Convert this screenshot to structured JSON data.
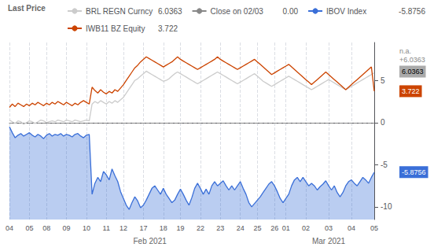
{
  "chart_data": {
    "type": "line",
    "legend": "upper left",
    "legend_title": "Last Price",
    "grid": true,
    "ylim": [
      -11.5,
      9.5
    ],
    "yticks": [
      -10,
      -5,
      0,
      5
    ],
    "month_labels": [
      "Feb 2021",
      "Mar 2021"
    ],
    "categories": [
      "04",
      null,
      null,
      null,
      null,
      null,
      null,
      "05",
      null,
      null,
      null,
      null,
      null,
      "08",
      null,
      null,
      null,
      null,
      null,
      null,
      "09",
      null,
      null,
      null,
      null,
      null,
      null,
      "10",
      null,
      null,
      null,
      null,
      null,
      null,
      "11",
      null,
      null,
      null,
      null,
      null,
      "12",
      null,
      null,
      null,
      null,
      null,
      null,
      "17",
      null,
      null,
      null,
      null,
      null,
      null,
      "18",
      null,
      null,
      null,
      null,
      null,
      "19",
      null,
      null,
      null,
      null,
      null,
      null,
      "22",
      null,
      null,
      null,
      null,
      null,
      null,
      "23",
      null,
      null,
      null,
      null,
      null,
      null,
      "24",
      null,
      null,
      null,
      null,
      null,
      "25",
      null,
      null,
      null,
      null,
      null,
      "26",
      null,
      null,
      null,
      "01",
      null,
      null,
      null,
      null,
      null,
      null,
      "02",
      null,
      null,
      null,
      null,
      null,
      null,
      null,
      "03",
      null,
      null,
      null,
      null,
      null,
      null,
      null,
      "04",
      null,
      null,
      null,
      null,
      null,
      null,
      null,
      "05"
    ],
    "series": [
      {
        "name": "BRL REGN Curncy",
        "last": "6.0363",
        "color": "#cccccc",
        "type": "line",
        "line_style": "solid",
        "values": [
          0.3,
          0.1,
          -0.1,
          0.2,
          0.1,
          -0.2,
          0.0,
          0.2,
          0.1,
          -0.1,
          0.1,
          0.3,
          0.2,
          0.0,
          0.1,
          0.2,
          0.1,
          0.3,
          0.2,
          0.1,
          0.3,
          0.2,
          0.1,
          0.3,
          0.2,
          0.1,
          0.2,
          0.3,
          0.2,
          2.2,
          2.5,
          2.3,
          2.6,
          2.4,
          2.2,
          2.5,
          2.3,
          2.6,
          2.4,
          2.7,
          3.0,
          3.5,
          4.0,
          4.5,
          5.0,
          5.2,
          5.5,
          5.8,
          6.1,
          5.9,
          5.7,
          5.5,
          5.3,
          5.1,
          4.9,
          5.0,
          5.2,
          5.5,
          5.8,
          6.0,
          5.8,
          5.6,
          5.4,
          5.2,
          5.0,
          4.8,
          4.6,
          4.8,
          5.0,
          5.2,
          5.4,
          5.6,
          5.8,
          6.0,
          5.8,
          5.6,
          5.4,
          5.2,
          5.0,
          4.8,
          4.6,
          4.8,
          5.0,
          5.2,
          5.4,
          5.6,
          5.8,
          5.5,
          5.2,
          4.9,
          4.7,
          4.5,
          4.3,
          4.5,
          4.7,
          4.9,
          5.1,
          5.3,
          5.5,
          5.3,
          5.1,
          4.9,
          4.7,
          4.5,
          4.3,
          4.1,
          3.9,
          4.1,
          4.3,
          4.5,
          4.7,
          4.9,
          5.1,
          4.9,
          4.7,
          4.5,
          4.3,
          4.1,
          3.9,
          4.1,
          4.3,
          4.5,
          4.7,
          4.9,
          5.1,
          5.3,
          5.5,
          5.7,
          5.9
        ]
      },
      {
        "name": "Close on 02/03",
        "last": "0.00",
        "color": "#888888",
        "type": "hline",
        "line_style": "dashed",
        "y": 0
      },
      {
        "name": "IBOV Index",
        "last": "-5.8756",
        "color": "#3a6fd8",
        "type": "area",
        "line_style": "solid",
        "values": [
          -0.5,
          -1.2,
          -1.8,
          -1.5,
          -1.3,
          -1.6,
          -1.4,
          -1.2,
          -1.5,
          -1.7,
          -1.4,
          -1.6,
          -1.9,
          -1.5,
          -1.3,
          -1.6,
          -1.4,
          -1.5,
          -1.3,
          -1.6,
          -1.4,
          -1.5,
          -1.7,
          -1.4,
          -1.3,
          -1.6,
          -1.8,
          -1.5,
          -1.4,
          -8.5,
          -7.2,
          -6.5,
          -7.0,
          -5.8,
          -6.2,
          -6.8,
          -5.5,
          -6.3,
          -7.0,
          -8.2,
          -9.0,
          -9.8,
          -10.3,
          -9.5,
          -8.8,
          -9.3,
          -10.1,
          -9.8,
          -9.2,
          -8.5,
          -7.8,
          -7.5,
          -8.0,
          -8.5,
          -7.8,
          -8.5,
          -9.0,
          -9.5,
          -9.2,
          -8.5,
          -7.9,
          -8.5,
          -9.2,
          -9.8,
          -8.9,
          -7.8,
          -7.2,
          -7.8,
          -8.5,
          -7.9,
          -8.5,
          -7.5,
          -7.0,
          -7.5,
          -7.2,
          -6.9,
          -7.5,
          -8.0,
          -7.5,
          -8.0,
          -7.5,
          -7.0,
          -7.8,
          -8.5,
          -9.5,
          -10.0,
          -9.6,
          -9.2,
          -8.8,
          -8.3,
          -7.8,
          -7.3,
          -7.0,
          -7.5,
          -8.2,
          -9.0,
          -9.5,
          -9.0,
          -8.5,
          -7.5,
          -6.8,
          -6.5,
          -7.0,
          -6.5,
          -7.0,
          -7.5,
          -7.2,
          -7.5,
          -8.0,
          -7.6,
          -7.3,
          -6.9,
          -7.5,
          -8.0,
          -7.5,
          -8.3,
          -8.8,
          -8.3,
          -7.5,
          -7.0,
          -6.8,
          -7.2,
          -7.5,
          -7.0,
          -6.5,
          -6.8,
          -7.2,
          -6.5,
          -5.9
        ]
      },
      {
        "name": "IWB11 BZ Equity",
        "last": "3.722",
        "color": "#cc4400",
        "type": "line",
        "line_style": "solid",
        "values": [
          1.8,
          2.2,
          1.9,
          2.3,
          2.1,
          1.9,
          2.2,
          2.0,
          2.3,
          2.1,
          2.4,
          2.2,
          2.0,
          2.3,
          2.1,
          2.4,
          2.2,
          2.5,
          2.3,
          2.1,
          2.4,
          2.2,
          2.0,
          2.3,
          2.1,
          2.4,
          2.6,
          2.4,
          2.2,
          4.2,
          3.8,
          3.5,
          3.9,
          3.6,
          3.4,
          3.7,
          3.5,
          3.9,
          3.7,
          4.1,
          4.5,
          5.0,
          5.5,
          6.0,
          6.5,
          6.8,
          7.2,
          7.5,
          7.8,
          7.6,
          7.4,
          7.2,
          7.0,
          6.8,
          6.6,
          6.8,
          7.0,
          7.2,
          7.5,
          7.8,
          7.5,
          7.3,
          7.1,
          6.9,
          6.7,
          6.5,
          6.3,
          6.5,
          6.7,
          6.9,
          7.1,
          7.3,
          7.5,
          7.8,
          7.5,
          7.3,
          7.1,
          6.9,
          6.7,
          6.5,
          6.3,
          6.5,
          6.7,
          6.9,
          7.1,
          7.3,
          7.5,
          7.2,
          6.9,
          6.6,
          6.3,
          6.0,
          5.7,
          5.9,
          6.1,
          6.3,
          6.5,
          6.7,
          6.9,
          6.6,
          6.3,
          6.0,
          5.7,
          5.4,
          5.1,
          4.8,
          4.5,
          4.8,
          5.1,
          5.4,
          5.7,
          6.0,
          5.7,
          5.4,
          5.1,
          4.8,
          4.5,
          4.2,
          3.9,
          4.2,
          4.5,
          4.8,
          5.1,
          5.4,
          5.7,
          6.0,
          6.3,
          6.6,
          3.722
        ]
      }
    ],
    "annotations": [
      {
        "text": "6.0363",
        "y": 6.0363,
        "color": "#000000",
        "background": "#aaaaaa"
      },
      {
        "text": "3.722",
        "y": 3.722,
        "color": "#ffffff",
        "background": "#cc4400"
      },
      {
        "text": "-5.8756",
        "y": -5.8756,
        "color": "#ffffff",
        "background": "#3a6fd8"
      },
      {
        "text": "n.a.\n+6.0363",
        "y": 8.0,
        "color": "#888888"
      }
    ]
  }
}
